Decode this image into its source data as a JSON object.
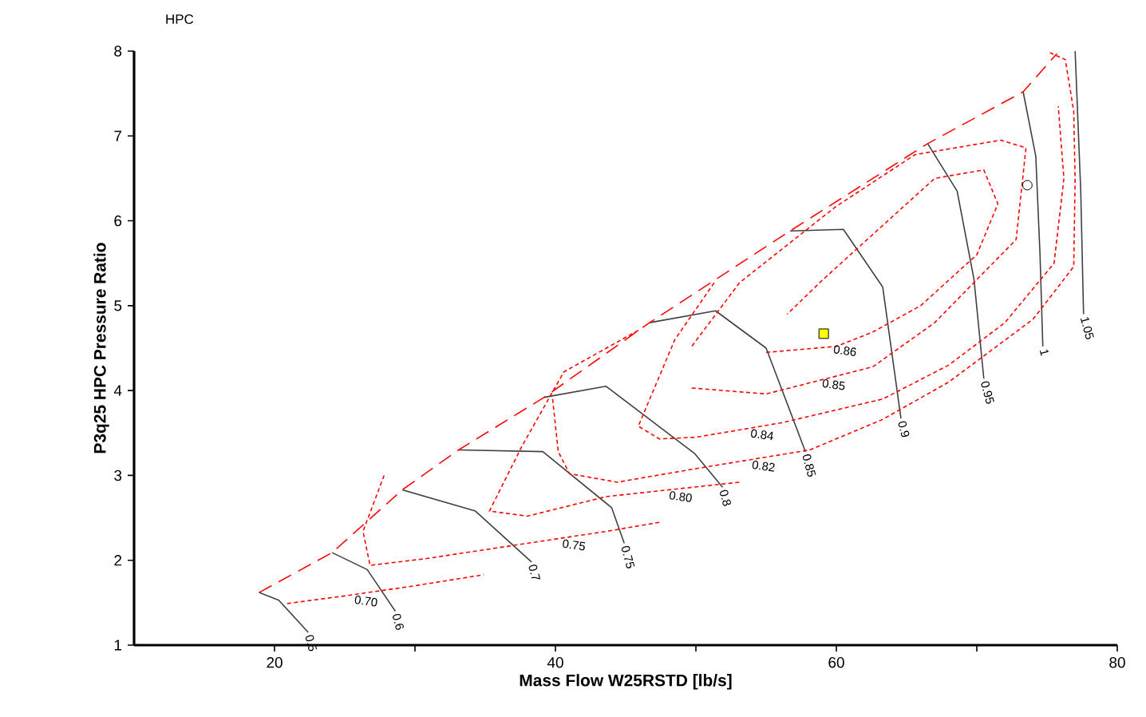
{
  "chart_data": {
    "type": "line",
    "title": "HPC",
    "xlabel": "Mass Flow W25RSTD [lb/s]",
    "ylabel": "P3q25   HPC Pressure Ratio",
    "xlim": [
      10,
      80
    ],
    "ylim": [
      1,
      8
    ],
    "xticks": [
      20,
      {
        "value": 30,
        "label": null
      },
      40,
      {
        "value": 50,
        "label": null
      },
      60,
      {
        "value": 70,
        "label": null
      },
      80
    ],
    "yticks": [
      1,
      2,
      3,
      4,
      5,
      6,
      7,
      8
    ],
    "grid": false,
    "series": [
      {
        "name": "0.5",
        "color": "#404040",
        "line_style": "solid",
        "x": [
          18.9,
          20.3,
          22.4
        ],
        "values": [
          1.62,
          1.53,
          1.15
        ]
      },
      {
        "name": "0.6",
        "color": "#404040",
        "line_style": "solid",
        "x": [
          24.1,
          26.6,
          28.6
        ],
        "values": [
          2.09,
          1.89,
          1.4
        ]
      },
      {
        "name": "0.7",
        "color": "#404040",
        "line_style": "solid",
        "x": [
          29.1,
          34.3,
          38.3
        ],
        "values": [
          2.83,
          2.58,
          1.98
        ]
      },
      {
        "name": "0.75",
        "color": "#404040",
        "line_style": "solid",
        "x": [
          33.1,
          39.1,
          44.0,
          44.9
        ],
        "values": [
          3.3,
          3.28,
          2.62,
          2.2
        ]
      },
      {
        "name": "0.8",
        "color": "#404040",
        "line_style": "solid",
        "x": [
          39.2,
          43.6,
          49.9,
          51.9
        ],
        "values": [
          3.92,
          4.05,
          3.26,
          2.86
        ]
      },
      {
        "name": "0.85",
        "color": "#404040",
        "line_style": "solid",
        "x": [
          46.7,
          51.4,
          55.0,
          57.8
        ],
        "values": [
          4.8,
          4.94,
          4.5,
          3.28
        ]
      },
      {
        "name": "0.9",
        "color": "#404040",
        "line_style": "solid",
        "x": [
          56.7,
          60.5,
          63.3,
          64.6
        ],
        "values": [
          5.88,
          5.9,
          5.22,
          3.67
        ]
      },
      {
        "name": "0.95",
        "color": "#404040",
        "line_style": "solid",
        "x": [
          66.5,
          68.6,
          69.8,
          70.5
        ],
        "values": [
          6.91,
          6.35,
          5.31,
          4.14
        ]
      },
      {
        "name": "1",
        "color": "#404040",
        "line_style": "solid",
        "x": [
          73.3,
          74.2,
          74.5,
          74.7
        ],
        "values": [
          7.52,
          6.76,
          5.6,
          4.52
        ]
      },
      {
        "name": "1.05",
        "color": "#404040",
        "line_style": "solid",
        "x": [
          77.0,
          77.4,
          77.6
        ],
        "values": [
          8.0,
          6.35,
          4.9
        ]
      },
      {
        "color": "#ff0000",
        "line_style": "dashed",
        "x": [
          18.9,
          24.1,
          29.1,
          33.1,
          39.2,
          46.7,
          56.7,
          66.5,
          73.3,
          75.7
        ],
        "values": [
          1.62,
          2.09,
          2.83,
          3.3,
          3.92,
          4.8,
          5.88,
          6.91,
          7.52,
          7.97
        ]
      },
      {
        "color": "#ff0000",
        "line_style": "dotted",
        "x": [
          20.9,
          25.0,
          30.0,
          34.9
        ],
        "values": [
          1.49,
          1.58,
          1.7,
          1.83
        ]
      },
      {
        "color": "#ff0000",
        "line_style": "dotted",
        "x": [
          27.8,
          26.3,
          26.8,
          30.8,
          36.0,
          40.0,
          43.6,
          47.5
        ],
        "values": [
          3.0,
          2.34,
          1.94,
          2.02,
          2.15,
          2.25,
          2.34,
          2.45
        ]
      },
      {
        "color": "#ff0000",
        "line_style": "dotted",
        "x": [
          45.9,
          40.6,
          37.6,
          35.3,
          38.0,
          43.6,
          47.5,
          53.1
        ],
        "values": [
          4.71,
          4.22,
          3.34,
          2.58,
          2.52,
          2.75,
          2.82,
          2.92
        ]
      },
      {
        "color": "#ff0000",
        "line_style": "dotted",
        "x": [
          39.8,
          40.2,
          41.0,
          44.4,
          50.0,
          58.1,
          63.3,
          68.0,
          74.0,
          76.9,
          77.0,
          76.9,
          76.3,
          75.1
        ],
        "values": [
          3.9,
          3.28,
          3.02,
          2.92,
          3.08,
          3.3,
          3.66,
          4.1,
          4.84,
          5.46,
          6.5,
          7.29,
          7.9,
          7.99
        ]
      },
      {
        "color": "#ff0000",
        "line_style": "dotted",
        "x": [
          51.3,
          48.5,
          45.9,
          47.4,
          50.0,
          56.1,
          63.3,
          68.0,
          72.0,
          75.5,
          76.2,
          75.8
        ],
        "values": [
          5.27,
          4.6,
          3.58,
          3.43,
          3.45,
          3.62,
          3.9,
          4.3,
          4.8,
          5.5,
          6.5,
          7.35
        ]
      },
      {
        "color": "#ff0000",
        "line_style": "dotted",
        "x": [
          49.7,
          55.0,
          62.6,
          67.0,
          72.8,
          73.5,
          71.7,
          65.6,
          59.9,
          53.1,
          49.7
        ],
        "values": [
          4.03,
          3.96,
          4.28,
          4.8,
          5.78,
          6.86,
          6.95,
          6.78,
          6.16,
          5.27,
          4.52
        ]
      },
      {
        "color": "#ff0000",
        "line_style": "dotted",
        "x": [
          55.0,
          60.0,
          62.6,
          66.0,
          70.0,
          71.5,
          70.5,
          67.0,
          63.0,
          59.0,
          56.5
        ],
        "values": [
          4.45,
          4.52,
          4.69,
          5.0,
          5.6,
          6.2,
          6.6,
          6.5,
          5.9,
          5.3,
          4.9
        ]
      },
      {
        "type": "scatter",
        "marker": "square",
        "color": "#ffff00",
        "x": [
          59.1
        ],
        "values": [
          4.67
        ]
      },
      {
        "type": "scatter",
        "marker": "circle",
        "color": "#ffffff",
        "x": [
          73.6
        ],
        "values": [
          6.42
        ]
      }
    ],
    "annotations": [
      {
        "text": "0.70",
        "x": 26.6,
        "y": 1.62
      },
      {
        "text": "0.75",
        "x": 41.4,
        "y": 2.28
      },
      {
        "text": "0.80",
        "x": 49.0,
        "y": 2.85
      },
      {
        "text": "0.82",
        "x": 54.9,
        "y": 3.21
      },
      {
        "text": "0.84",
        "x": 54.8,
        "y": 3.58
      },
      {
        "text": "0.85",
        "x": 59.9,
        "y": 4.17
      },
      {
        "text": "0.86",
        "x": 60.7,
        "y": 4.57
      }
    ]
  }
}
